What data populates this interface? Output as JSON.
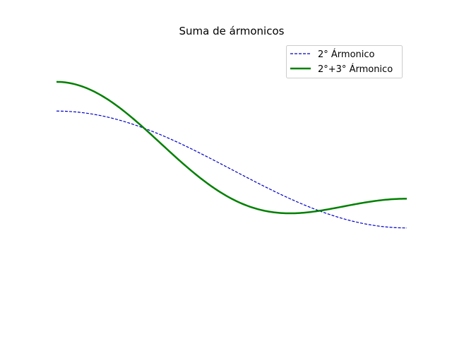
{
  "chart_data": {
    "type": "line",
    "title": "Suma de ármonicos",
    "xlabel": "",
    "ylabel": "",
    "axes_visible": false,
    "grid": false,
    "legend_position": "top-right",
    "x_range": [
      0,
      6.2832
    ],
    "y_range": [
      -2.2,
      2.2
    ],
    "samples": 200,
    "series": [
      {
        "name": "2° Ármonico",
        "formula": "cos(x/2)",
        "color": "#0000cc",
        "line_style": "dashed",
        "points": [
          [
            0.0,
            1.0
          ],
          [
            0.785,
            0.924
          ],
          [
            1.571,
            0.707
          ],
          [
            2.356,
            0.383
          ],
          [
            3.142,
            0.0
          ],
          [
            3.927,
            -0.383
          ],
          [
            4.712,
            -0.707
          ],
          [
            5.498,
            -0.924
          ],
          [
            6.283,
            -1.0
          ]
        ]
      },
      {
        "name": "2°+3° Ármonico",
        "formula": "cos(x/2) + 0.5*cos(x)",
        "color": "#008000",
        "line_style": "solid",
        "points": [
          [
            0.0,
            1.5
          ],
          [
            0.785,
            1.278
          ],
          [
            1.571,
            0.707
          ],
          [
            2.356,
            0.029
          ],
          [
            3.142,
            -0.5
          ],
          [
            3.927,
            -0.737
          ],
          [
            4.712,
            -0.707
          ],
          [
            5.498,
            -0.57
          ],
          [
            6.283,
            -0.5
          ]
        ]
      }
    ]
  }
}
